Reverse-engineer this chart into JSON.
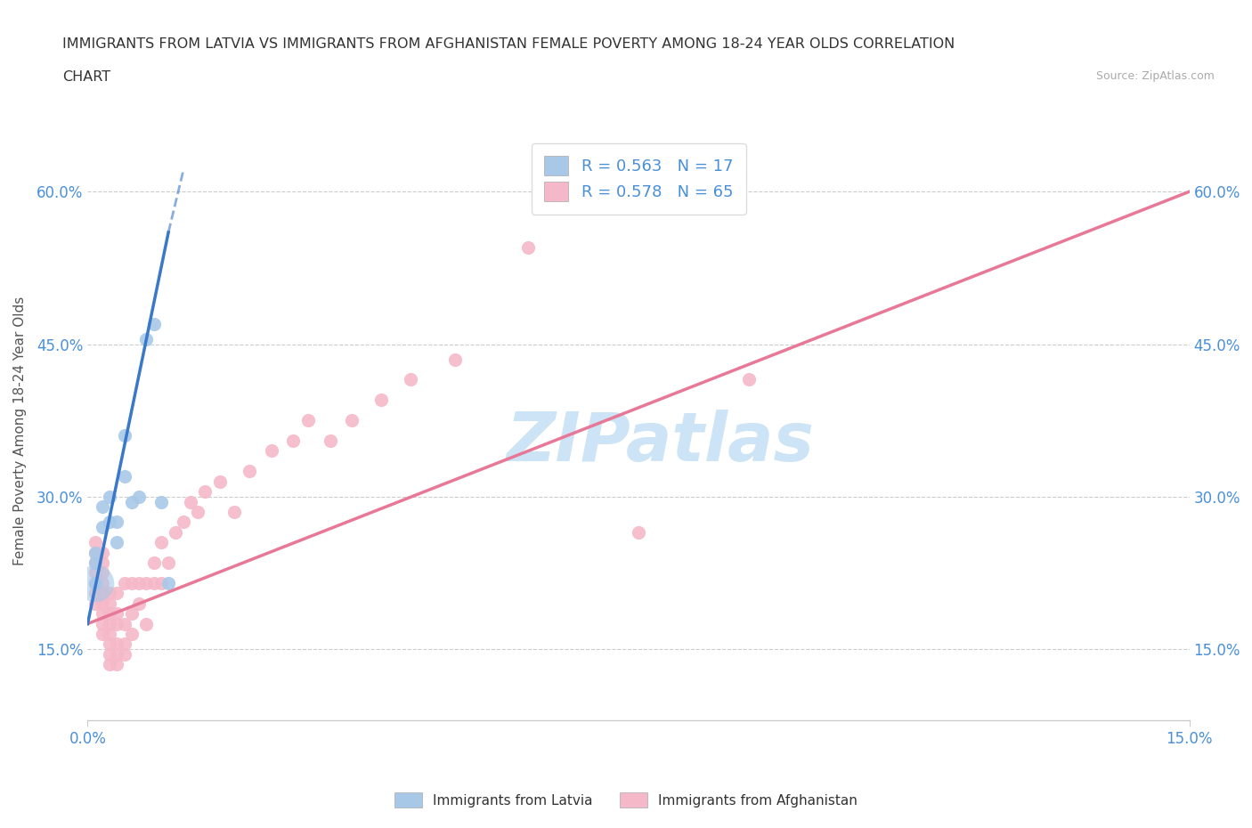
{
  "title_line1": "IMMIGRANTS FROM LATVIA VS IMMIGRANTS FROM AFGHANISTAN FEMALE POVERTY AMONG 18-24 YEAR OLDS CORRELATION",
  "title_line2": "CHART",
  "source_text": "Source: ZipAtlas.com",
  "ylabel": "Female Poverty Among 18-24 Year Olds",
  "xlim": [
    0.0,
    0.15
  ],
  "ylim": [
    0.08,
    0.65
  ],
  "xtick_positions": [
    0.0,
    0.15
  ],
  "xtick_labels": [
    "0.0%",
    "15.0%"
  ],
  "ytick_positions": [
    0.15,
    0.3,
    0.45,
    0.6
  ],
  "ytick_labels": [
    "15.0%",
    "30.0%",
    "45.0%",
    "60.0%"
  ],
  "r_latvia": 0.563,
  "n_latvia": 17,
  "r_afghanistan": 0.578,
  "n_afghanistan": 65,
  "color_latvia": "#a8c8e8",
  "color_afghanistan": "#f5b8c8",
  "trendline_latvia_color": "#3a78c9",
  "trendline_afghanistan_color": "#e87898",
  "watermark_color": "#cce4f5",
  "latvia_x": [
    0.001,
    0.001,
    0.001,
    0.002,
    0.002,
    0.003,
    0.003,
    0.004,
    0.004,
    0.005,
    0.005,
    0.006,
    0.007,
    0.008,
    0.009,
    0.01,
    0.011
  ],
  "latvia_y": [
    0.215,
    0.235,
    0.245,
    0.27,
    0.29,
    0.275,
    0.3,
    0.255,
    0.275,
    0.32,
    0.36,
    0.295,
    0.3,
    0.455,
    0.47,
    0.295,
    0.215
  ],
  "latvia_sizes": [
    60,
    60,
    60,
    60,
    60,
    60,
    60,
    60,
    60,
    60,
    60,
    60,
    60,
    60,
    60,
    60,
    60
  ],
  "latvia_big_point": [
    0.001,
    0.235
  ],
  "afghanistan_x": [
    0.001,
    0.001,
    0.001,
    0.001,
    0.001,
    0.001,
    0.001,
    0.002,
    0.002,
    0.002,
    0.002,
    0.002,
    0.002,
    0.002,
    0.002,
    0.002,
    0.003,
    0.003,
    0.003,
    0.003,
    0.003,
    0.003,
    0.003,
    0.003,
    0.004,
    0.004,
    0.004,
    0.004,
    0.004,
    0.004,
    0.005,
    0.005,
    0.005,
    0.005,
    0.006,
    0.006,
    0.006,
    0.007,
    0.007,
    0.008,
    0.008,
    0.009,
    0.009,
    0.01,
    0.01,
    0.011,
    0.012,
    0.013,
    0.014,
    0.015,
    0.016,
    0.018,
    0.02,
    0.022,
    0.025,
    0.028,
    0.03,
    0.033,
    0.036,
    0.04,
    0.044,
    0.05,
    0.06,
    0.075,
    0.09
  ],
  "afghanistan_y": [
    0.195,
    0.205,
    0.215,
    0.225,
    0.235,
    0.245,
    0.255,
    0.165,
    0.175,
    0.185,
    0.195,
    0.205,
    0.215,
    0.225,
    0.235,
    0.245,
    0.135,
    0.145,
    0.155,
    0.165,
    0.175,
    0.185,
    0.195,
    0.205,
    0.135,
    0.145,
    0.155,
    0.175,
    0.185,
    0.205,
    0.145,
    0.155,
    0.175,
    0.215,
    0.165,
    0.185,
    0.215,
    0.195,
    0.215,
    0.175,
    0.215,
    0.215,
    0.235,
    0.215,
    0.255,
    0.235,
    0.265,
    0.275,
    0.295,
    0.285,
    0.305,
    0.315,
    0.285,
    0.325,
    0.345,
    0.355,
    0.375,
    0.355,
    0.375,
    0.395,
    0.415,
    0.435,
    0.545,
    0.265,
    0.415
  ]
}
